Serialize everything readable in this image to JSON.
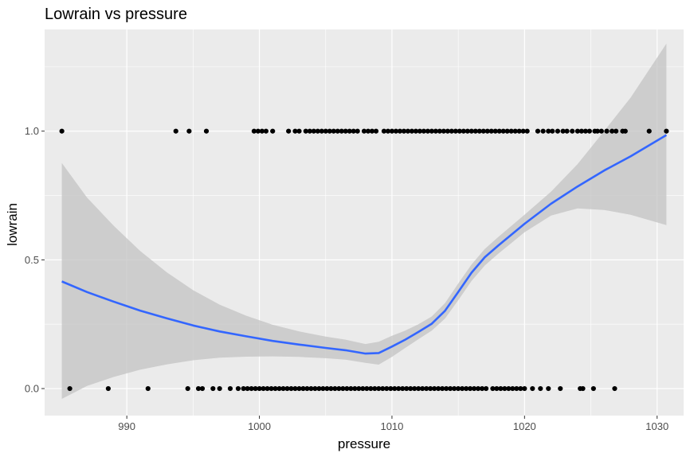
{
  "chart_data": {
    "type": "scatter",
    "title": "Lowrain vs pressure",
    "xlabel": "pressure",
    "ylabel": "lowrain",
    "xlim": [
      983.8,
      1032.0
    ],
    "ylim": [
      -0.105,
      1.395
    ],
    "xticks": [
      990,
      1000,
      1010,
      1020,
      1030
    ],
    "yticks": [
      0.0,
      0.5,
      1.0
    ],
    "ytick_labels": [
      "0.0",
      "0.5",
      "1.0"
    ],
    "grid": true,
    "legend": "none",
    "colors": {
      "panel": "#ebebeb",
      "grid": "#ffffff",
      "points": "#000000",
      "smooth_line": "#3366ff",
      "confidence_band": "#c0c0c0"
    },
    "points_y1": [
      985.1,
      993.7,
      994.7,
      996.0,
      999.6,
      999.9,
      1000.2,
      1000.5,
      1001.0,
      1002.2,
      1002.7,
      1003.0,
      1003.5,
      1003.8,
      1004.1,
      1004.4,
      1004.7,
      1005.0,
      1005.3,
      1005.6,
      1005.9,
      1006.2,
      1006.5,
      1006.8,
      1007.1,
      1007.4,
      1007.9,
      1008.2,
      1008.5,
      1008.8,
      1009.4,
      1009.7,
      1010.0,
      1010.3,
      1010.6,
      1010.9,
      1011.2,
      1011.5,
      1011.8,
      1012.1,
      1012.4,
      1012.7,
      1013.0,
      1013.3,
      1013.6,
      1013.9,
      1014.2,
      1014.5,
      1014.8,
      1015.1,
      1015.4,
      1015.7,
      1016.0,
      1016.3,
      1016.6,
      1016.9,
      1017.2,
      1017.5,
      1017.8,
      1018.1,
      1018.4,
      1018.7,
      1019.0,
      1019.3,
      1019.6,
      1019.9,
      1020.2,
      1021.0,
      1021.4,
      1021.8,
      1022.1,
      1022.5,
      1022.9,
      1023.2,
      1023.6,
      1024.0,
      1024.3,
      1024.6,
      1024.9,
      1025.3,
      1025.5,
      1025.8,
      1026.2,
      1026.6,
      1026.9,
      1027.4,
      1027.6,
      1029.4,
      1030.7
    ],
    "points_y0": [
      985.7,
      988.6,
      991.6,
      994.6,
      995.4,
      995.7,
      996.5,
      997.0,
      997.8,
      998.4,
      998.8,
      999.1,
      999.4,
      999.7,
      1000.0,
      1000.3,
      1000.6,
      1000.9,
      1001.2,
      1001.5,
      1001.8,
      1002.1,
      1002.4,
      1002.7,
      1003.0,
      1003.3,
      1003.6,
      1003.9,
      1004.2,
      1004.5,
      1004.8,
      1005.1,
      1005.4,
      1005.7,
      1006.0,
      1006.3,
      1006.6,
      1006.9,
      1007.2,
      1007.5,
      1007.8,
      1008.1,
      1008.4,
      1008.7,
      1009.0,
      1009.3,
      1009.6,
      1009.9,
      1010.2,
      1010.5,
      1010.8,
      1011.1,
      1011.4,
      1011.7,
      1012.0,
      1012.3,
      1012.6,
      1012.9,
      1013.2,
      1013.5,
      1013.8,
      1014.1,
      1014.4,
      1014.7,
      1015.0,
      1015.3,
      1015.6,
      1015.9,
      1016.2,
      1016.5,
      1016.8,
      1017.1,
      1017.6,
      1017.9,
      1018.2,
      1018.5,
      1018.8,
      1019.1,
      1019.4,
      1019.7,
      1020.0,
      1020.6,
      1021.2,
      1021.8,
      1022.7,
      1024.2,
      1024.4,
      1025.2,
      1026.8
    ],
    "smooth_fit": {
      "x": [
        985.1,
        987,
        989,
        991,
        993,
        995,
        997,
        999,
        1001,
        1003,
        1005,
        1006.5,
        1008,
        1009,
        1010,
        1011,
        1012,
        1013,
        1014,
        1015,
        1016,
        1017,
        1018,
        1020,
        1022,
        1024,
        1026,
        1028,
        1030.7
      ],
      "y": [
        0.416,
        0.375,
        0.338,
        0.303,
        0.273,
        0.245,
        0.222,
        0.203,
        0.185,
        0.171,
        0.158,
        0.149,
        0.136,
        0.138,
        0.163,
        0.19,
        0.22,
        0.252,
        0.302,
        0.375,
        0.45,
        0.51,
        0.555,
        0.64,
        0.718,
        0.785,
        0.847,
        0.902,
        0.985
      ],
      "lower": [
        -0.04,
        0.01,
        0.045,
        0.073,
        0.094,
        0.11,
        0.12,
        0.124,
        0.125,
        0.123,
        0.118,
        0.112,
        0.1,
        0.093,
        0.123,
        0.158,
        0.192,
        0.225,
        0.272,
        0.343,
        0.418,
        0.478,
        0.523,
        0.607,
        0.672,
        0.7,
        0.694,
        0.675,
        0.635
      ],
      "upper": [
        0.876,
        0.742,
        0.633,
        0.535,
        0.452,
        0.382,
        0.326,
        0.283,
        0.248,
        0.222,
        0.202,
        0.19,
        0.173,
        0.182,
        0.205,
        0.225,
        0.25,
        0.28,
        0.332,
        0.408,
        0.482,
        0.542,
        0.588,
        0.675,
        0.765,
        0.872,
        1.0,
        1.13,
        1.34
      ]
    }
  }
}
